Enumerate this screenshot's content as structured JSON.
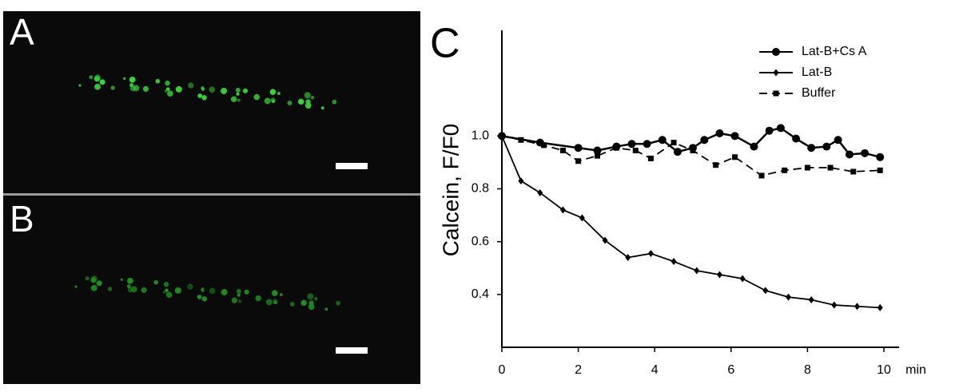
{
  "panels": {
    "a": "A",
    "b": "B"
  },
  "chart_data": {
    "type": "line",
    "panel_label": "C",
    "y_label": "Calcein, F/F0",
    "x_label": "min",
    "xlim": [
      0,
      10.4
    ],
    "xticks": [
      0,
      2,
      4,
      6,
      8,
      10
    ],
    "ylim": [
      0.2,
      1.4
    ],
    "yticks": [
      0.4,
      0.6,
      0.8,
      {
        "value": 1.0,
        "label": "1.0"
      }
    ],
    "legend": "upper right",
    "color": "#000000",
    "series": [
      {
        "name": "Lat-B+Cs A",
        "marker": "circle",
        "dash": false,
        "x": [
          0,
          1.0,
          2.0,
          2.5,
          3.0,
          3.4,
          3.8,
          4.2,
          4.6,
          5.0,
          5.3,
          5.7,
          6.1,
          6.6,
          7.0,
          7.3,
          7.7,
          8.1,
          8.5,
          8.8,
          9.1,
          9.5,
          9.9
        ],
        "values": [
          1.0,
          0.975,
          0.955,
          0.945,
          0.96,
          0.97,
          0.97,
          0.985,
          0.94,
          0.955,
          0.985,
          1.01,
          1.0,
          0.96,
          1.02,
          1.03,
          0.99,
          0.955,
          0.96,
          0.985,
          0.93,
          0.935,
          0.92
        ]
      },
      {
        "name": "Lat-B",
        "marker": "diamond",
        "dash": false,
        "x": [
          0,
          0.5,
          1.0,
          1.6,
          2.1,
          2.7,
          3.3,
          3.9,
          4.5,
          5.1,
          5.7,
          6.3,
          6.9,
          7.5,
          8.1,
          8.7,
          9.3,
          9.9
        ],
        "values": [
          1.0,
          0.83,
          0.785,
          0.72,
          0.69,
          0.605,
          0.54,
          0.555,
          0.525,
          0.49,
          0.475,
          0.46,
          0.415,
          0.39,
          0.38,
          0.36,
          0.355,
          0.35
        ]
      },
      {
        "name": "Buffer",
        "marker": "square",
        "dash": true,
        "x": [
          0,
          0.5,
          1.1,
          1.6,
          2.0,
          2.5,
          3.0,
          3.5,
          3.9,
          4.5,
          5.0,
          5.6,
          6.1,
          6.8,
          7.4,
          8.0,
          8.6,
          9.2,
          9.9
        ],
        "values": [
          1.0,
          0.985,
          0.965,
          0.945,
          0.905,
          0.925,
          0.955,
          0.945,
          0.915,
          0.975,
          0.945,
          0.89,
          0.92,
          0.85,
          0.87,
          0.88,
          0.88,
          0.865,
          0.87
        ]
      }
    ]
  }
}
